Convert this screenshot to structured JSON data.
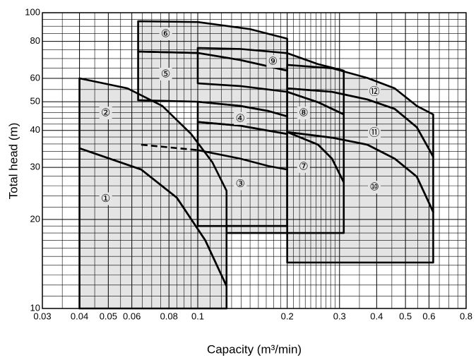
{
  "chart_data": {
    "type": "region",
    "xlabel": "Capacity (m³/min)",
    "ylabel": "Total head (m)",
    "xscale": "log",
    "yscale": "log",
    "xlim": [
      0.03,
      0.8
    ],
    "ylim": [
      10,
      100
    ],
    "xticks": [
      0.03,
      0.04,
      0.05,
      0.06,
      0.08,
      0.1,
      0.2,
      0.3,
      0.4,
      0.5,
      0.6,
      0.8
    ],
    "yticks": [
      10,
      20,
      30,
      40,
      50,
      60,
      80,
      100
    ],
    "grid": true,
    "minor_xgrid": [
      0.035,
      0.045,
      0.055,
      0.065,
      0.07,
      0.075,
      0.085,
      0.09,
      0.095,
      0.11,
      0.12,
      0.13,
      0.14,
      0.15,
      0.16,
      0.17,
      0.18,
      0.19,
      0.21,
      0.22,
      0.23,
      0.24,
      0.25,
      0.26,
      0.27,
      0.28,
      0.29,
      0.35,
      0.45,
      0.55,
      0.65,
      0.7,
      0.75
    ],
    "minor_ygrid": [
      11,
      12,
      13,
      14,
      15,
      16,
      17,
      18,
      19,
      22,
      24,
      26,
      28,
      32,
      34,
      36,
      38,
      42,
      44,
      46,
      48,
      55,
      65,
      70,
      75,
      85,
      90,
      95
    ],
    "fill_color": "#e4e4e4",
    "line_color": "#000000",
    "regions": [
      {
        "name": "①",
        "x": [
          0.04,
          0.04,
          0.0645,
          0.085,
          0.106,
          0.125,
          0.125
        ],
        "y": [
          10,
          34.8,
          29.5,
          23.7,
          17,
          11.9,
          10
        ],
        "label_x": 0.049,
        "label_y": 23.5
      },
      {
        "name": "②",
        "x": [
          0.04,
          0.04,
          0.058,
          0.076,
          0.095,
          0.112,
          0.125,
          0.125,
          0.106,
          0.085,
          0.0645
        ],
        "y": [
          34.8,
          60,
          55.5,
          48.4,
          38.9,
          31.2,
          25,
          11.9,
          17,
          23.7,
          29.5
        ],
        "label_x": 0.049,
        "label_y": 45.8
      },
      {
        "name": "③",
        "x": [
          0.1,
          0.1,
          0.139,
          0.173,
          0.2,
          0.2
        ],
        "y": [
          19,
          42.7,
          41.5,
          39.9,
          38.9,
          19
        ],
        "label_x": 0.139,
        "label_y": 26.4
      },
      {
        "name": "④",
        "x": [
          0.1,
          0.1,
          0.139,
          0.173,
          0.2,
          0.2,
          0.173,
          0.139
        ],
        "y": [
          42.7,
          50,
          48.4,
          46.5,
          44.6,
          38.9,
          39.9,
          41.5
        ],
        "label_x": 0.139,
        "label_y": 43.9
      },
      {
        "name": "⑤",
        "x": [
          0.063,
          0.063,
          0.1,
          0.139,
          0.2,
          0.2,
          0.173,
          0.139,
          0.1
        ],
        "y": [
          50.6,
          73.9,
          73.1,
          69.2,
          63.7,
          44.6,
          46.5,
          48.4,
          50
        ],
        "label_x": 0.078,
        "label_y": 62
      },
      {
        "name": "⑥",
        "x": [
          0.063,
          0.063,
          0.1,
          0.15,
          0.2,
          0.2,
          0.139,
          0.1
        ],
        "y": [
          73.9,
          93.6,
          93,
          88,
          81.7,
          63.7,
          69.2,
          73.1
        ],
        "label_x": 0.078,
        "label_y": 84.8
      },
      {
        "name": "⑦",
        "x": [
          0.125,
          0.125,
          0.2,
          0.2,
          0.254,
          0.283,
          0.31,
          0.31
        ],
        "y": [
          18,
          19,
          19,
          39.5,
          35.8,
          32.1,
          26.7,
          18
        ],
        "label_x": 0.227,
        "label_y": 30.2
      },
      {
        "name": "⑧",
        "x": [
          0.2,
          0.2,
          0.254,
          0.31,
          0.31,
          0.283,
          0.254
        ],
        "y": [
          39.5,
          54,
          49.8,
          45.3,
          26.7,
          32.1,
          35.8
        ],
        "label_x": 0.227,
        "label_y": 45.8
      },
      {
        "name": "⑨",
        "x": [
          0.1,
          0.1,
          0.139,
          0.2,
          0.254,
          0.31,
          0.31,
          0.254,
          0.2,
          0.139
        ],
        "y": [
          57.7,
          76,
          75.4,
          73,
          67,
          63.7,
          45.3,
          49.8,
          54,
          56.5
        ],
        "label_x": 0.179,
        "label_y": 68.4
      },
      {
        "name": "⑩",
        "x": [
          0.2,
          0.2,
          0.283,
          0.372,
          0.46,
          0.546,
          0.62,
          0.62
        ],
        "y": [
          14.3,
          39.5,
          37.8,
          35.8,
          32.1,
          27.9,
          21.2,
          14.3
        ],
        "label_x": 0.393,
        "label_y": 25.7
      },
      {
        "name": "⑪",
        "x": [
          0.2,
          0.2,
          0.283,
          0.372,
          0.46,
          0.546,
          0.62,
          0.62,
          0.546,
          0.46,
          0.372,
          0.283
        ],
        "y": [
          39.5,
          55.5,
          54,
          50.9,
          47.3,
          41,
          32.6,
          21.2,
          27.9,
          32.1,
          35.8,
          37.8
        ],
        "label_x": 0.393,
        "label_y": 39.3
      },
      {
        "name": "⑫",
        "x": [
          0.2,
          0.2,
          0.283,
          0.372,
          0.46,
          0.546,
          0.62,
          0.62,
          0.546,
          0.46,
          0.372,
          0.283
        ],
        "y": [
          55.5,
          66.6,
          64.9,
          60.2,
          55.5,
          48.4,
          45.3,
          32.6,
          41,
          47.3,
          50.9,
          54
        ],
        "label_x": 0.393,
        "label_y": 54
      }
    ],
    "lines": [
      {
        "style": "dashed",
        "x": [
          0.0645,
          0.1
        ],
        "y": [
          35.8,
          34.3
        ]
      },
      {
        "style": "solid",
        "x": [
          0.1,
          0.139,
          0.173,
          0.2
        ],
        "y": [
          34.3,
          32.1,
          30.3,
          29.5
        ]
      }
    ]
  }
}
